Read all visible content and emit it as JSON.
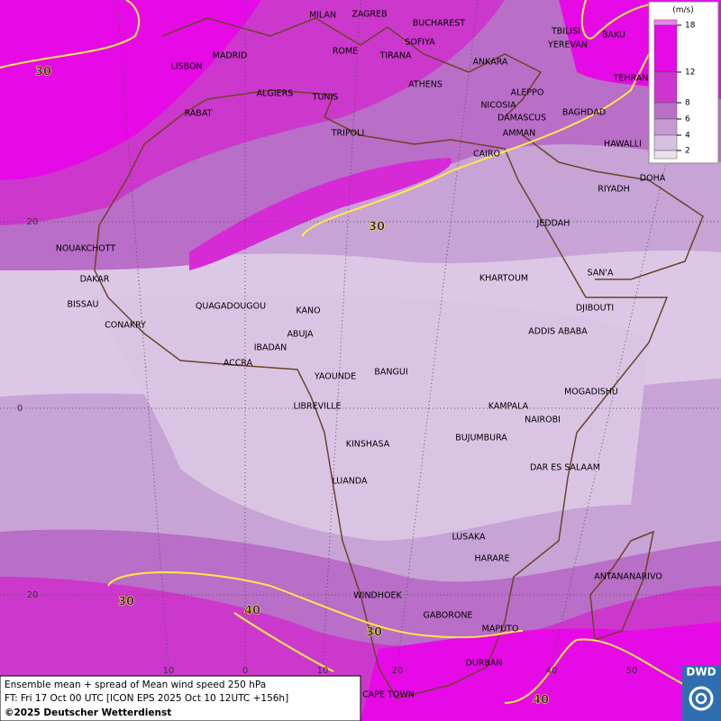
{
  "map": {
    "cities": [
      "MILAN",
      "ZAGREB",
      "BUCHAREST",
      "TBILISI",
      "BAKU",
      "YEREVAN",
      "ROME",
      "SOFIYA",
      "MADRID",
      "LISBON",
      "TIRANA",
      "ANKARA",
      "TEHRAN",
      "ALGIERS",
      "TUNIS",
      "ATHENS",
      "ALEPPO",
      "RABAT",
      "NICOSIA",
      "BAGHDAD",
      "DAMASCUS",
      "AMMAN",
      "TRIPOLI",
      "HAWALLI",
      "CAIRO",
      "DOHA",
      "RIYADH",
      "JEDDAH",
      "SAN'A",
      "NOUAKCHOTT",
      "KHARTOUM",
      "DAKAR",
      "BISSAU",
      "DJIBOUTI",
      "QUAGADOUGOU",
      "KANO",
      "CONAKRY",
      "ADDIS ABABA",
      "ABUJA",
      "IBADAN",
      "ACCRA",
      "BANGUI",
      "YAOUNDE",
      "MOGADISHU",
      "LIBREVILLE",
      "KAMPALA",
      "NAIROBI",
      "KINSHASA",
      "BUJUMBURA",
      "DAR ES SALAAM",
      "LUANDA",
      "LUSAKA",
      "HARARE",
      "ANTANANARIVO",
      "WINDHOEK",
      "GABORONE",
      "MAPUTO",
      "DURBAN",
      "CAPE TOWN"
    ],
    "contour_labels": [
      "30",
      "30",
      "30",
      "40",
      "30",
      "40"
    ],
    "lat_labels": [
      "20",
      "0",
      "20"
    ],
    "lon_labels": [
      "10",
      "0",
      "10",
      "20",
      "40",
      "50"
    ]
  },
  "legend": {
    "unit": "(m/s)",
    "levels": [
      18,
      12,
      8,
      6,
      4,
      2
    ],
    "colors": [
      "#f27ef0",
      "#e60ae6",
      "#cc36cc",
      "#b871c6",
      "#c699d2",
      "#d8c0e2",
      "#ebdfee"
    ]
  },
  "footer": {
    "line1": "Ensemble mean + spread of Mean wind speed 250 hPa",
    "line2": "FT: Fri 17 Oct 00 UTC [ICON EPS 2025 Oct 10 12UTC +156h]",
    "line3": "©2025 Deutscher Wetterdienst"
  },
  "logo": "DWD"
}
